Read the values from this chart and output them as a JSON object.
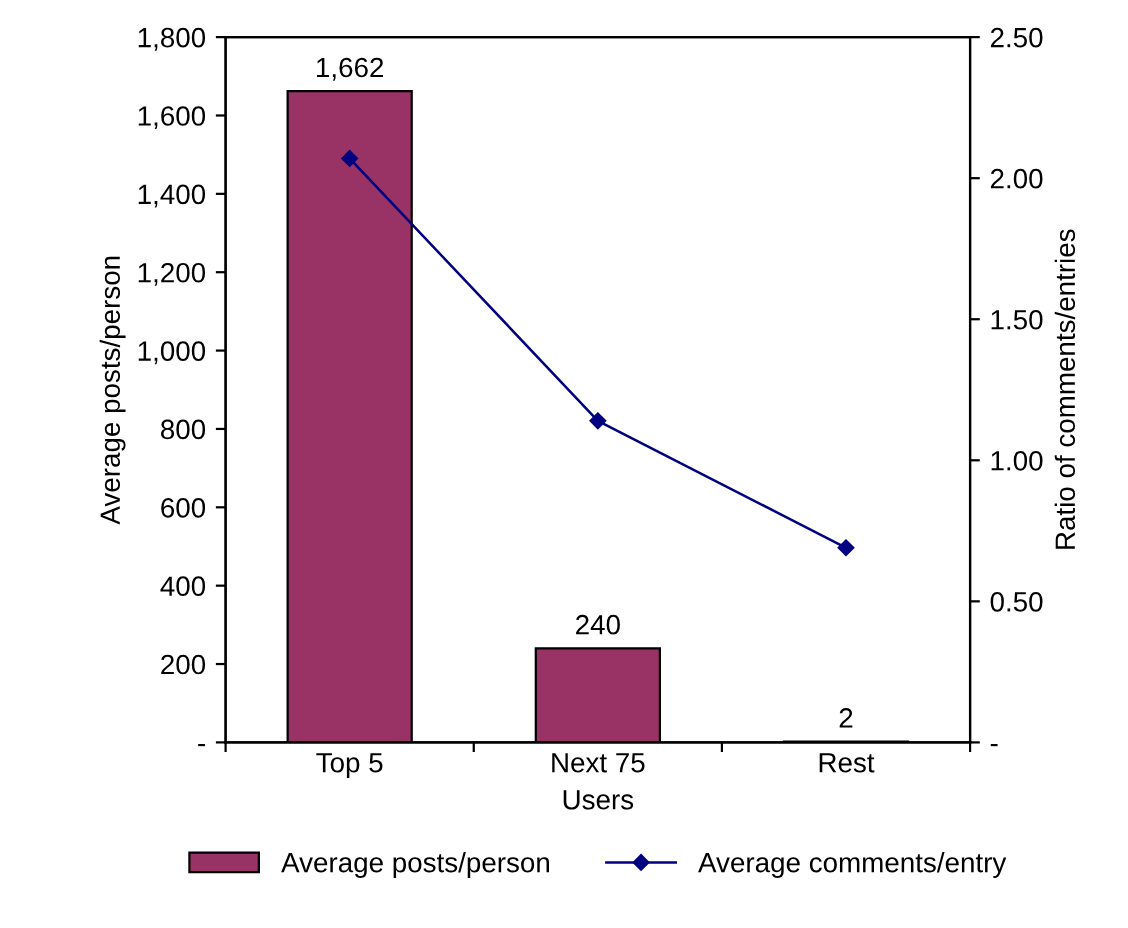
{
  "chart_data": {
    "type": "bar",
    "categories": [
      "Top 5",
      "Next 75",
      "Rest"
    ],
    "xlabel": "Users",
    "ylabel": "Average posts/person",
    "y2label": "Ratio of comments/entries",
    "series": [
      {
        "name": "Average posts/person",
        "color": "#993366",
        "values": [
          1662,
          240,
          2
        ],
        "value_labels": [
          "1,662",
          "240",
          "2"
        ]
      },
      {
        "name": "Average comments/entry",
        "type": "line",
        "axis": "y2",
        "color": "#000080",
        "values": [
          2.07,
          1.14,
          0.69
        ]
      }
    ],
    "ylim": [
      0,
      1800
    ],
    "yticks": [
      {
        "value": 0,
        "label": "-"
      },
      {
        "value": 200,
        "label": "200"
      },
      {
        "value": 400,
        "label": "400"
      },
      {
        "value": 600,
        "label": "600"
      },
      {
        "value": 800,
        "label": "800"
      },
      {
        "value": 1000,
        "label": "1,000"
      },
      {
        "value": 1200,
        "label": "1,200"
      },
      {
        "value": 1400,
        "label": "1,400"
      },
      {
        "value": 1600,
        "label": "1,600"
      },
      {
        "value": 1800,
        "label": "1,800"
      }
    ],
    "y2lim": [
      0,
      2.5
    ],
    "y2ticks": [
      {
        "value": 0,
        "label": "-"
      },
      {
        "value": 0.5,
        "label": "0.50"
      },
      {
        "value": 1.0,
        "label": "1.00"
      },
      {
        "value": 1.5,
        "label": "1.50"
      },
      {
        "value": 2.0,
        "label": "2.00"
      },
      {
        "value": 2.5,
        "label": "2.50"
      }
    ],
    "legend": "bottom",
    "marker": "diamond",
    "line_style": "solid",
    "grid": false
  }
}
